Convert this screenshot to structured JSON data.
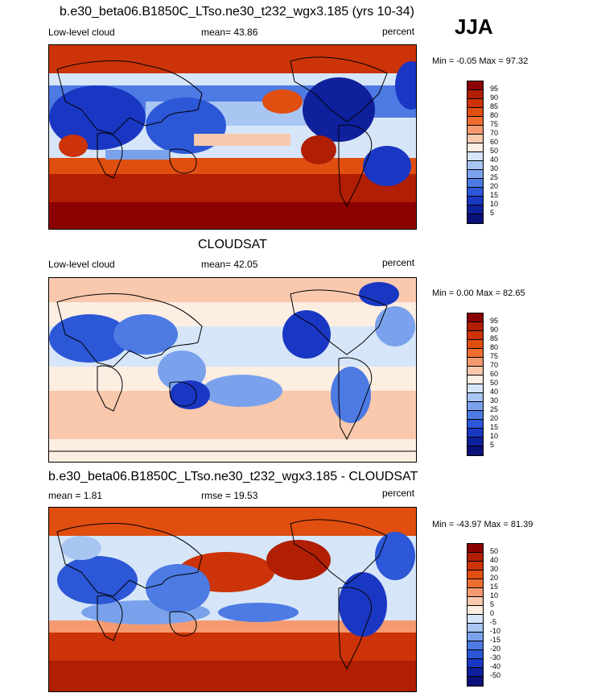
{
  "season": "JJA",
  "panels": [
    {
      "id": "model",
      "title": "b.e30_beta06.B1850C_LTso.ne30_t232_wgx3.185 (yrs 10-34)",
      "left_label": "Low-level cloud",
      "center_label": "mean=  43.86",
      "units": "percent",
      "minmax": "Min =  -0.05 Max =  97.32",
      "colorbar": {
        "labels": [
          "95",
          "90",
          "85",
          "80",
          "75",
          "70",
          "60",
          "50",
          "40",
          "30",
          "25",
          "20",
          "15",
          "10",
          "5"
        ],
        "colors": [
          "#8b0000",
          "#b01e04",
          "#cc3308",
          "#e04e10",
          "#ee6e32",
          "#f59a70",
          "#f9c8ad",
          "#fdeee2",
          "#d6e6f8",
          "#a9c6f3",
          "#7aa2ec",
          "#4d7ae3",
          "#2c57d6",
          "#1a37c4",
          "#0f209c",
          "#0a1178"
        ]
      }
    },
    {
      "id": "obs",
      "title": "CLOUDSAT",
      "left_label": "Low-level cloud",
      "center_label": "mean=  42.05",
      "units": "percent",
      "minmax": "Min =   0.00 Max =  82.65",
      "colorbar": {
        "labels": [
          "95",
          "90",
          "85",
          "80",
          "75",
          "70",
          "60",
          "50",
          "40",
          "30",
          "25",
          "20",
          "15",
          "10",
          "5"
        ],
        "colors": [
          "#8b0000",
          "#b01e04",
          "#cc3308",
          "#e04e10",
          "#ee6e32",
          "#f59a70",
          "#f9c8ad",
          "#fdeee2",
          "#d6e6f8",
          "#a9c6f3",
          "#7aa2ec",
          "#4d7ae3",
          "#2c57d6",
          "#1a37c4",
          "#0f209c",
          "#0a1178"
        ]
      }
    },
    {
      "id": "diff",
      "title": "b.e30_beta06.B1850C_LTso.ne30_t232_wgx3.185 - CLOUDSAT",
      "left_label": "mean =   1.81",
      "center_label": "rmse =  19.53",
      "units": "percent",
      "minmax": "Min = -43.97 Max =  81.39",
      "colorbar": {
        "labels": [
          "50",
          "40",
          "30",
          "20",
          "15",
          "10",
          "5",
          "0",
          "-5",
          "-10",
          "-15",
          "-20",
          "-30",
          "-40",
          "-50"
        ],
        "colors": [
          "#8b0000",
          "#b01e04",
          "#cc3308",
          "#e04e10",
          "#ee6e32",
          "#f59a70",
          "#f9c8ad",
          "#fdeee2",
          "#d6e6f8",
          "#a9c6f3",
          "#7aa2ec",
          "#4d7ae3",
          "#2c57d6",
          "#1a37c4",
          "#0f209c",
          "#0a1178"
        ]
      }
    }
  ]
}
